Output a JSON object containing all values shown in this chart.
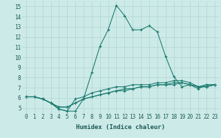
{
  "title": "",
  "xlabel": "Humidex (Indice chaleur)",
  "ylabel": "",
  "bg_color": "#cceae8",
  "grid_color": "#b0d4d0",
  "line_color": "#1a7a6e",
  "xlim": [
    -0.5,
    23.5
  ],
  "ylim": [
    4.5,
    15.5
  ],
  "xticks": [
    0,
    1,
    2,
    3,
    4,
    5,
    6,
    7,
    8,
    9,
    10,
    11,
    12,
    13,
    14,
    15,
    16,
    17,
    18,
    19,
    20,
    21,
    22,
    23
  ],
  "yticks": [
    5,
    6,
    7,
    8,
    9,
    10,
    11,
    12,
    13,
    14,
    15
  ],
  "series": [
    [
      6.1,
      6.1,
      5.9,
      5.5,
      4.9,
      4.7,
      4.7,
      5.9,
      8.5,
      11.1,
      12.7,
      15.1,
      14.1,
      12.7,
      12.7,
      13.1,
      12.5,
      10.1,
      8.1,
      7.1,
      7.3,
      6.9,
      7.3,
      7.3
    ],
    [
      6.1,
      6.1,
      5.9,
      5.5,
      4.9,
      4.7,
      5.9,
      6.1,
      6.5,
      6.7,
      6.9,
      7.1,
      7.1,
      7.3,
      7.3,
      7.3,
      7.5,
      7.5,
      7.7,
      7.7,
      7.5,
      7.1,
      7.3,
      7.3
    ],
    [
      6.1,
      6.1,
      5.9,
      5.5,
      5.1,
      5.1,
      5.5,
      5.9,
      6.1,
      6.3,
      6.5,
      6.7,
      6.9,
      6.9,
      7.1,
      7.1,
      7.3,
      7.3,
      7.5,
      7.5,
      7.3,
      7.1,
      7.1,
      7.3
    ],
    [
      6.1,
      6.1,
      5.9,
      5.5,
      5.1,
      5.1,
      5.5,
      5.9,
      6.1,
      6.3,
      6.5,
      6.7,
      6.7,
      6.9,
      7.1,
      7.1,
      7.3,
      7.3,
      7.3,
      7.5,
      7.3,
      7.1,
      7.1,
      7.3
    ]
  ],
  "tick_fontsize": 5.5,
  "xlabel_fontsize": 6.5
}
